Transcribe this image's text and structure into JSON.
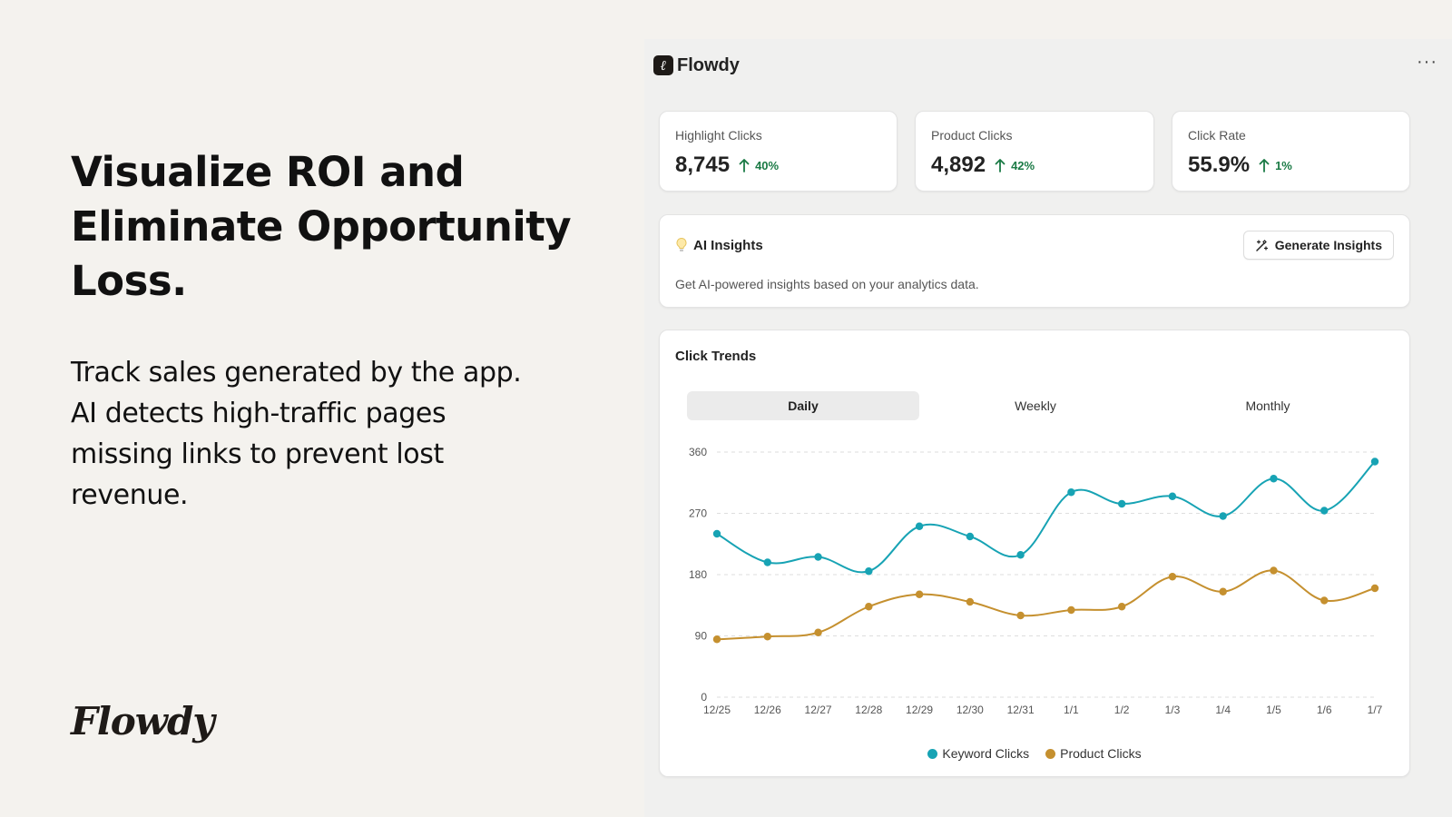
{
  "hero": {
    "title": "Visualize ROI and Eliminate Opportunity Loss.",
    "description": "Track sales generated by the app. AI detects high-traffic pages missing links to prevent lost revenue.",
    "brand": "Flowdy"
  },
  "app": {
    "logo_glyph": "ℓ",
    "name": "Flowdy",
    "more_label": "···"
  },
  "stats": [
    {
      "label": "Highlight Clicks",
      "value": "8,745",
      "delta": "40%"
    },
    {
      "label": "Product Clicks",
      "value": "4,892",
      "delta": "42%"
    },
    {
      "label": "Click Rate",
      "value": "55.9%",
      "delta": "1%"
    }
  ],
  "ai": {
    "icon": "lightbulb-icon",
    "title": "AI Insights",
    "button_label": "Generate Insights",
    "description": "Get AI-powered insights based on your analytics data."
  },
  "trends": {
    "title": "Click Trends",
    "tabs": [
      "Daily",
      "Weekly",
      "Monthly"
    ],
    "active_tab": "Daily"
  },
  "chart_data": {
    "type": "line",
    "categories": [
      "12/25",
      "12/26",
      "12/27",
      "12/28",
      "12/29",
      "12/30",
      "12/31",
      "1/1",
      "1/2",
      "1/3",
      "1/4",
      "1/5",
      "1/6",
      "1/7"
    ],
    "y_ticks": [
      0,
      90,
      180,
      270,
      360
    ],
    "ylim": [
      0,
      360
    ],
    "grid": "horizontal-dashed",
    "legend_position": "bottom",
    "series": [
      {
        "name": "Keyword Clicks",
        "color": "#17a3b4",
        "values": [
          240,
          198,
          206,
          185,
          251,
          236,
          209,
          301,
          284,
          295,
          266,
          321,
          274,
          346
        ]
      },
      {
        "name": "Product Clicks",
        "color": "#c5902f",
        "values": [
          85,
          89,
          95,
          133,
          151,
          140,
          120,
          128,
          133,
          177,
          155,
          186,
          142,
          160
        ]
      }
    ]
  }
}
